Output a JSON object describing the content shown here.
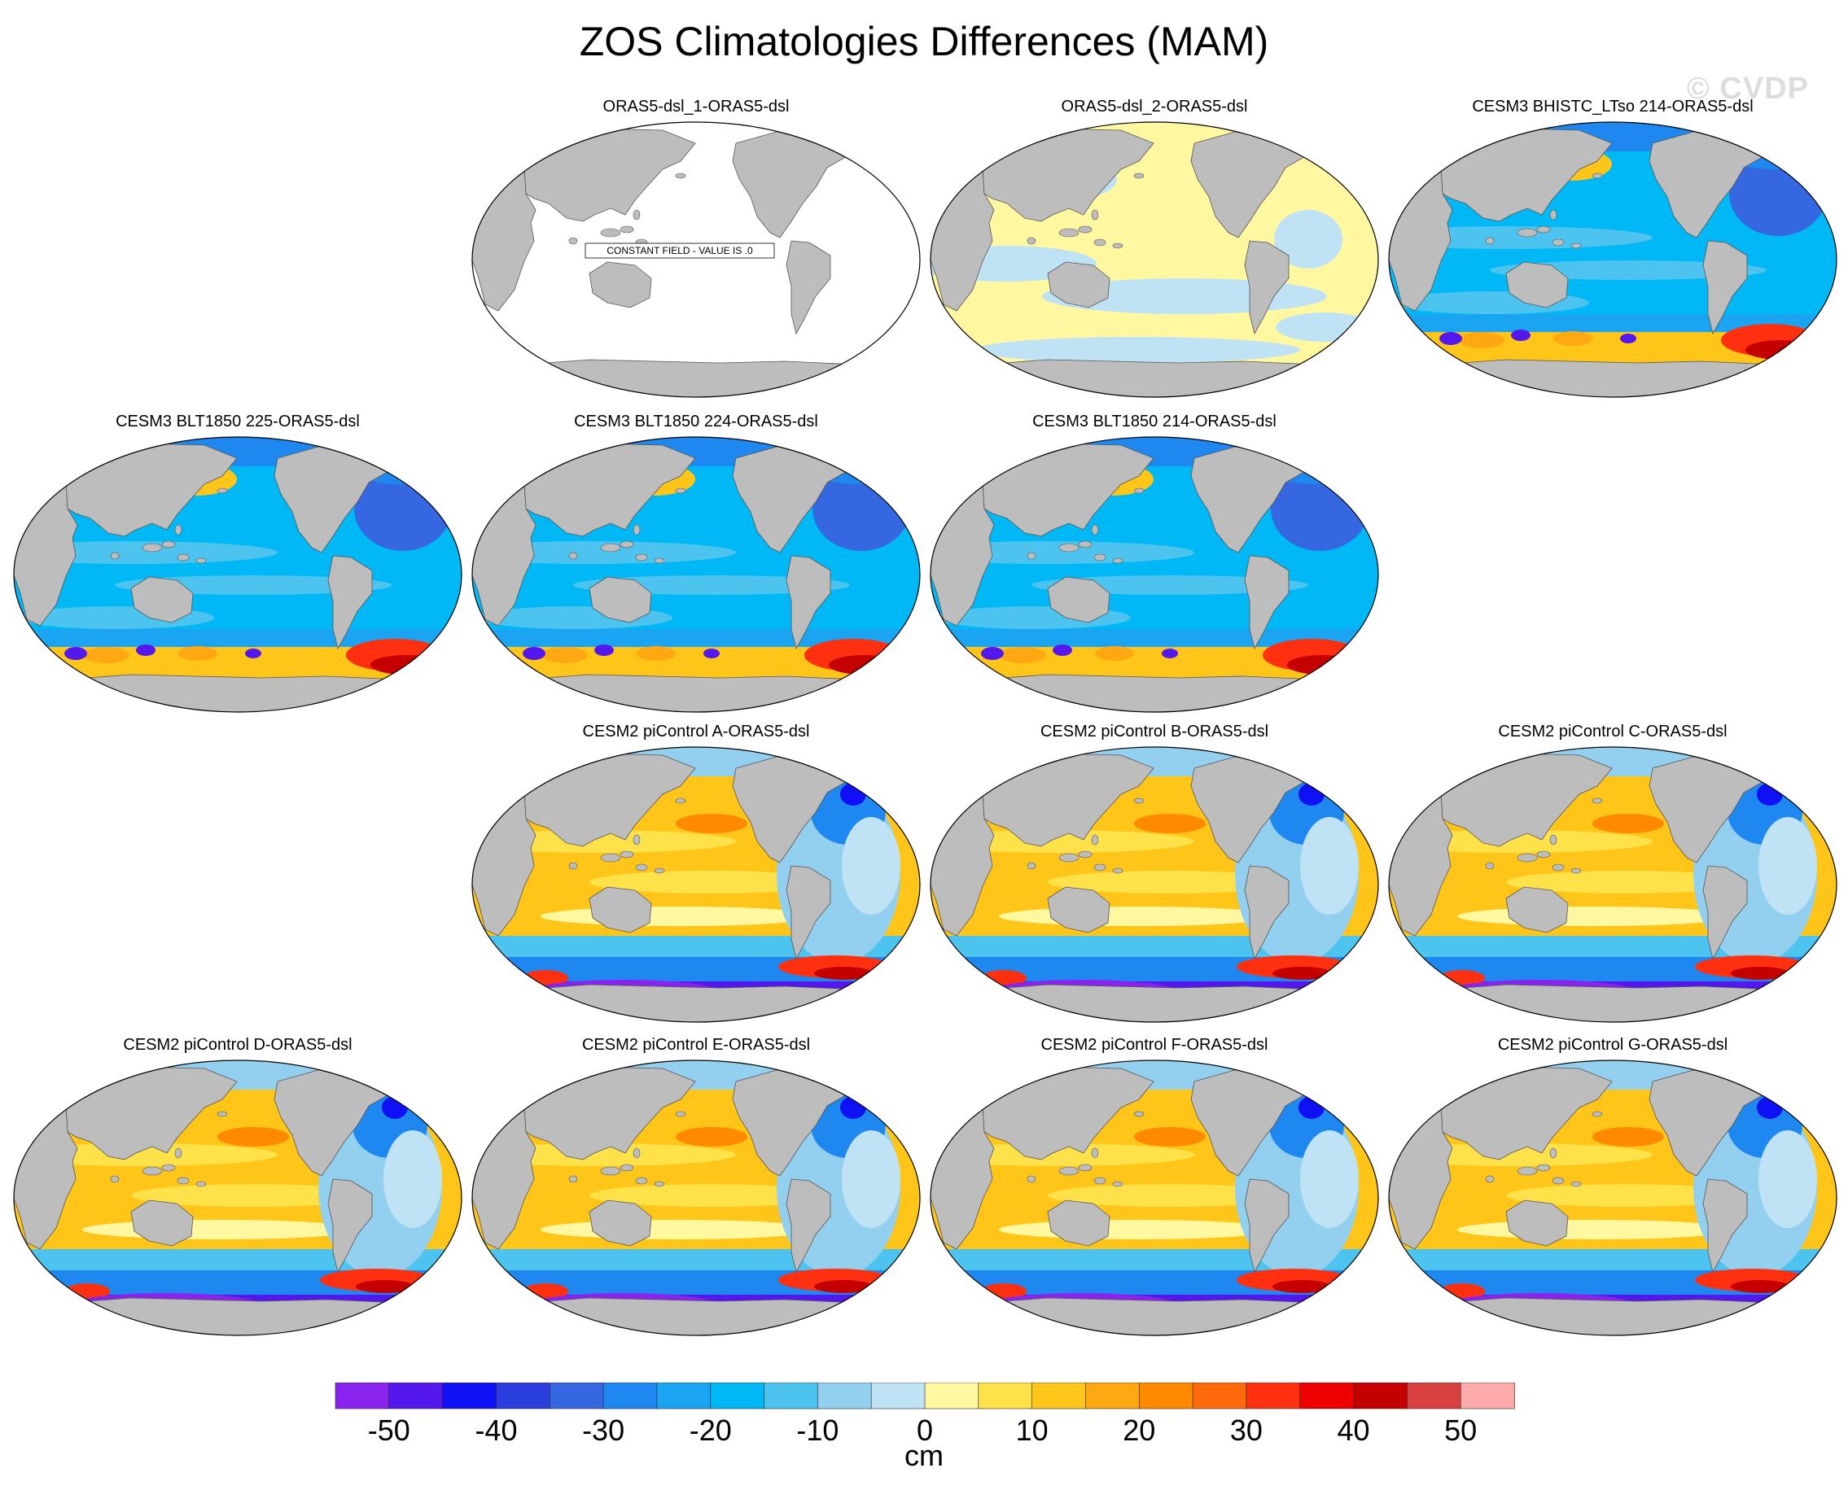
{
  "figure": {
    "title": "ZOS Climatologies Differences (MAM)",
    "watermark": "© CVDP"
  },
  "colorbar": {
    "units": "cm",
    "bounds": [
      -55,
      55
    ],
    "colors": [
      "#8b23ee",
      "#5417ee",
      "#1010f5",
      "#2a3fdd",
      "#3568e0",
      "#1e88f0",
      "#1aa4f2",
      "#00b8f5",
      "#4cc4ef",
      "#93cfee",
      "#bfe3f5",
      "#fff8a0",
      "#ffe14a",
      "#ffc518",
      "#ffa812",
      "#ff8a00",
      "#ff6a0c",
      "#ff3010",
      "#ee0000",
      "#c40000",
      "#d94040",
      "#ffaaaa"
    ],
    "ticks": [
      {
        "value": -50,
        "label": "-50"
      },
      {
        "value": -40,
        "label": "-40"
      },
      {
        "value": -30,
        "label": "-30"
      },
      {
        "value": -20,
        "label": "-20"
      },
      {
        "value": -10,
        "label": "-10"
      },
      {
        "value": 0,
        "label": "0"
      },
      {
        "value": 10,
        "label": "10"
      },
      {
        "value": 20,
        "label": "20"
      },
      {
        "value": 30,
        "label": "30"
      },
      {
        "value": 40,
        "label": "40"
      },
      {
        "value": 50,
        "label": "50"
      }
    ]
  },
  "panels": [
    {
      "title": "ORAS5-dsl_1-ORAS5-dsl",
      "pattern": "constant",
      "annotation": "CONSTANT FIELD - VALUE IS .0"
    },
    {
      "title": "ORAS5-dsl_2-ORAS5-dsl",
      "pattern": "near-zero"
    },
    {
      "title": "CESM3 BHISTC_LTso 214-ORAS5-dsl",
      "pattern": "cesm3"
    },
    {
      "title": "CESM3 BLT1850 225-ORAS5-dsl",
      "pattern": "cesm3"
    },
    {
      "title": "CESM3 BLT1850 224-ORAS5-dsl",
      "pattern": "cesm3"
    },
    {
      "title": "CESM3 BLT1850 214-ORAS5-dsl",
      "pattern": "cesm3"
    },
    {
      "title": "CESM2 piControl A-ORAS5-dsl",
      "pattern": "cesm2"
    },
    {
      "title": "CESM2 piControl B-ORAS5-dsl",
      "pattern": "cesm2"
    },
    {
      "title": "CESM2 piControl C-ORAS5-dsl",
      "pattern": "cesm2"
    },
    {
      "title": "CESM2 piControl D-ORAS5-dsl",
      "pattern": "cesm2"
    },
    {
      "title": "CESM2 piControl E-ORAS5-dsl",
      "pattern": "cesm2"
    },
    {
      "title": "CESM2 piControl F-ORAS5-dsl",
      "pattern": "cesm2"
    },
    {
      "title": "CESM2 piControl G-ORAS5-dsl",
      "pattern": "cesm2"
    }
  ]
}
